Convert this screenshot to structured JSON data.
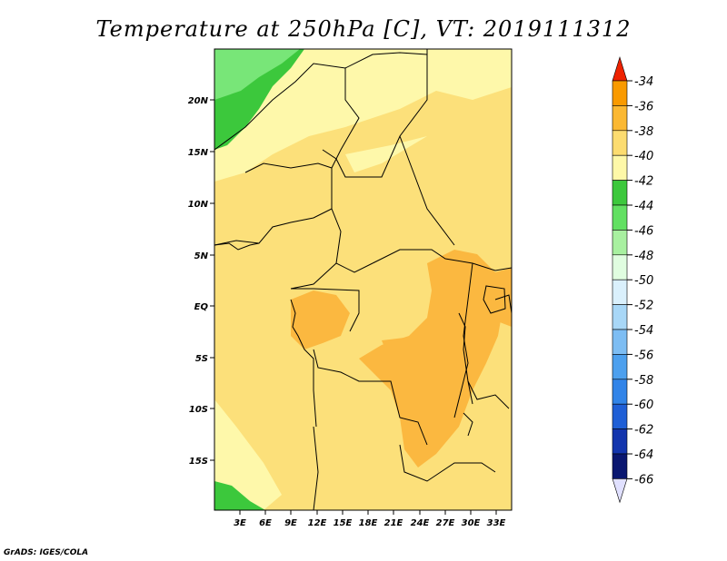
{
  "title": "Temperature at 250hPa [C], VT: 2019111312",
  "footer": "GrADS: IGES/COLA",
  "lat_labels": [
    "20N",
    "15N",
    "10N",
    "5N",
    "EQ",
    "5S",
    "10S",
    "15S"
  ],
  "lon_labels": [
    "3E",
    "6E",
    "9E",
    "12E",
    "15E",
    "18E",
    "21E",
    "24E",
    "27E",
    "30E",
    "33E"
  ],
  "colorbar": {
    "labels": [
      "-34",
      "-36",
      "-38",
      "-40",
      "-42",
      "-44",
      "-46",
      "-48",
      "-50",
      "-52",
      "-54",
      "-56",
      "-58",
      "-60",
      "-62",
      "-64",
      "-66"
    ],
    "top_color": "#ee2200",
    "bottom_color": "#e0e0ff",
    "colors": [
      "#f55a00",
      "#f99a00",
      "#fbb832",
      "#fcdc70",
      "#fef8a8",
      "#3cc83c",
      "#62e062",
      "#a8f0a0",
      "#e0fde0",
      "#daf0fc",
      "#a8d7f7",
      "#7dbdf3",
      "#4da0ee",
      "#3184e8",
      "#1f5fd6",
      "#1335ad",
      "#0a1770"
    ]
  },
  "map_colors": {
    "base": "#fce07a",
    "light": "#fef8aa",
    "warm": "#fbb840",
    "green_dark": "#3cc83c",
    "green_light": "#78e678",
    "border": "#000000"
  }
}
